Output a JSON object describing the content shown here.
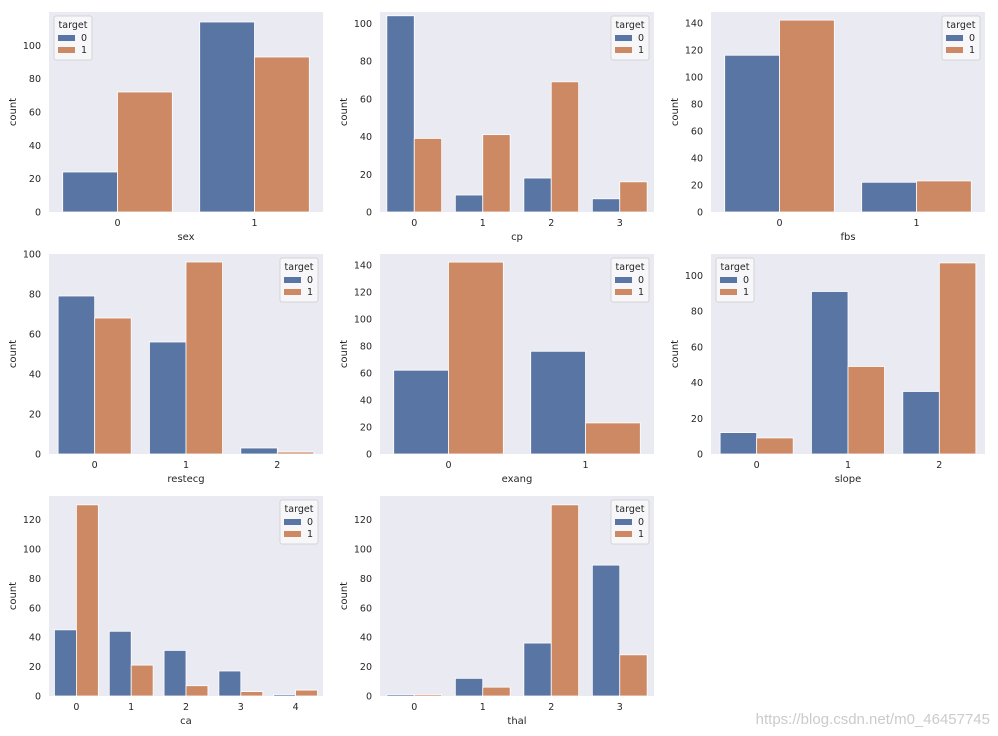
{
  "colors": {
    "series0": "#5975a4",
    "series1": "#cc8963",
    "plot_bg": "#eaeaf2",
    "text": "#262626",
    "legend_bg": "#f7f7fa"
  },
  "watermark": "https://blog.csdn.net/m0_46457745",
  "chart_data": [
    {
      "type": "bar",
      "title": "",
      "xlabel": "sex",
      "ylabel": "count",
      "ylim": [
        0,
        120
      ],
      "yticks": [
        0,
        20,
        40,
        60,
        80,
        100
      ],
      "categories": [
        "0",
        "1"
      ],
      "legend_title": "target",
      "legend_pos": "top-left",
      "series": [
        {
          "name": "0",
          "values": [
            24,
            114
          ]
        },
        {
          "name": "1",
          "values": [
            72,
            93
          ]
        }
      ]
    },
    {
      "type": "bar",
      "title": "",
      "xlabel": "cp",
      "ylabel": "count",
      "ylim": [
        0,
        106
      ],
      "yticks": [
        0,
        20,
        40,
        60,
        80,
        100
      ],
      "categories": [
        "0",
        "1",
        "2",
        "3"
      ],
      "legend_title": "target",
      "legend_pos": "top-right",
      "series": [
        {
          "name": "0",
          "values": [
            104,
            9,
            18,
            7
          ]
        },
        {
          "name": "1",
          "values": [
            39,
            41,
            69,
            16
          ]
        }
      ]
    },
    {
      "type": "bar",
      "title": "",
      "xlabel": "fbs",
      "ylabel": "count",
      "ylim": [
        0,
        148
      ],
      "yticks": [
        0,
        20,
        40,
        60,
        80,
        100,
        120,
        140
      ],
      "categories": [
        "0",
        "1"
      ],
      "legend_title": "target",
      "legend_pos": "top-right",
      "series": [
        {
          "name": "0",
          "values": [
            116,
            22
          ]
        },
        {
          "name": "1",
          "values": [
            142,
            23
          ]
        }
      ]
    },
    {
      "type": "bar",
      "title": "",
      "xlabel": "restecg",
      "ylabel": "count",
      "ylim": [
        0,
        100
      ],
      "yticks": [
        0,
        20,
        40,
        60,
        80,
        100
      ],
      "categories": [
        "0",
        "1",
        "2"
      ],
      "legend_title": "target",
      "legend_pos": "top-right",
      "series": [
        {
          "name": "0",
          "values": [
            79,
            56,
            3
          ]
        },
        {
          "name": "1",
          "values": [
            68,
            96,
            1
          ]
        }
      ]
    },
    {
      "type": "bar",
      "title": "",
      "xlabel": "exang",
      "ylabel": "count",
      "ylim": [
        0,
        148
      ],
      "yticks": [
        0,
        20,
        40,
        60,
        80,
        100,
        120,
        140
      ],
      "categories": [
        "0",
        "1"
      ],
      "legend_title": "target",
      "legend_pos": "top-right",
      "series": [
        {
          "name": "0",
          "values": [
            62,
            76
          ]
        },
        {
          "name": "1",
          "values": [
            142,
            23
          ]
        }
      ]
    },
    {
      "type": "bar",
      "title": "",
      "xlabel": "slope",
      "ylabel": "count",
      "ylim": [
        0,
        112
      ],
      "yticks": [
        0,
        20,
        40,
        60,
        80,
        100
      ],
      "categories": [
        "0",
        "1",
        "2"
      ],
      "legend_title": "target",
      "legend_pos": "top-left",
      "series": [
        {
          "name": "0",
          "values": [
            12,
            91,
            35
          ]
        },
        {
          "name": "1",
          "values": [
            9,
            49,
            107
          ]
        }
      ]
    },
    {
      "type": "bar",
      "title": "",
      "xlabel": "ca",
      "ylabel": "count",
      "ylim": [
        0,
        136
      ],
      "yticks": [
        0,
        20,
        40,
        60,
        80,
        100,
        120
      ],
      "categories": [
        "0",
        "1",
        "2",
        "3",
        "4"
      ],
      "legend_title": "target",
      "legend_pos": "top-right",
      "series": [
        {
          "name": "0",
          "values": [
            45,
            44,
            31,
            17,
            1
          ]
        },
        {
          "name": "1",
          "values": [
            130,
            21,
            7,
            3,
            4
          ]
        }
      ]
    },
    {
      "type": "bar",
      "title": "",
      "xlabel": "thal",
      "ylabel": "count",
      "ylim": [
        0,
        136
      ],
      "yticks": [
        0,
        20,
        40,
        60,
        80,
        100,
        120
      ],
      "categories": [
        "0",
        "1",
        "2",
        "3"
      ],
      "legend_title": "target",
      "legend_pos": "top-right",
      "series": [
        {
          "name": "0",
          "values": [
            1,
            12,
            36,
            89
          ]
        },
        {
          "name": "1",
          "values": [
            1,
            6,
            130,
            28
          ]
        }
      ]
    }
  ]
}
